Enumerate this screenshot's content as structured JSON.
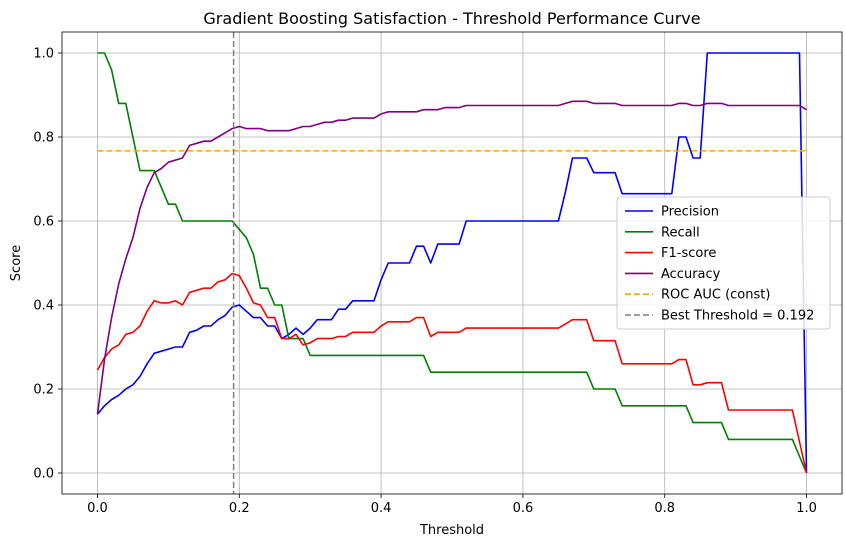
{
  "chart_data": {
    "type": "line",
    "title": "Gradient Boosting Satisfaction - Threshold Performance Curve",
    "xlabel": "Threshold",
    "ylabel": "Score",
    "xlim": [
      -0.05,
      1.05
    ],
    "ylim": [
      -0.05,
      1.05
    ],
    "xticks": [
      0.0,
      0.2,
      0.4,
      0.6,
      0.8,
      1.0
    ],
    "xtick_labels": [
      "0.0",
      "0.2",
      "0.4",
      "0.6",
      "0.8",
      "1.0"
    ],
    "yticks": [
      0.0,
      0.2,
      0.4,
      0.6,
      0.8,
      1.0
    ],
    "ytick_labels": [
      "0.0",
      "0.2",
      "0.4",
      "0.6",
      "0.8",
      "1.0"
    ],
    "grid": true,
    "legend_position": "center-right",
    "series": [
      {
        "name": "Precision",
        "color": "#0000ff",
        "points": [
          [
            0.0,
            0.14
          ],
          [
            0.01,
            0.16
          ],
          [
            0.02,
            0.175
          ],
          [
            0.03,
            0.185
          ],
          [
            0.04,
            0.2
          ],
          [
            0.05,
            0.21
          ],
          [
            0.06,
            0.23
          ],
          [
            0.07,
            0.26
          ],
          [
            0.08,
            0.285
          ],
          [
            0.09,
            0.29
          ],
          [
            0.1,
            0.295
          ],
          [
            0.11,
            0.3
          ],
          [
            0.12,
            0.3
          ],
          [
            0.13,
            0.335
          ],
          [
            0.14,
            0.34
          ],
          [
            0.15,
            0.35
          ],
          [
            0.16,
            0.35
          ],
          [
            0.17,
            0.365
          ],
          [
            0.18,
            0.375
          ],
          [
            0.19,
            0.395
          ],
          [
            0.2,
            0.4
          ],
          [
            0.21,
            0.385
          ],
          [
            0.22,
            0.37
          ],
          [
            0.23,
            0.37
          ],
          [
            0.24,
            0.35
          ],
          [
            0.25,
            0.35
          ],
          [
            0.26,
            0.32
          ],
          [
            0.27,
            0.33
          ],
          [
            0.28,
            0.345
          ],
          [
            0.29,
            0.33
          ],
          [
            0.3,
            0.345
          ],
          [
            0.31,
            0.365
          ],
          [
            0.32,
            0.365
          ],
          [
            0.33,
            0.365
          ],
          [
            0.34,
            0.39
          ],
          [
            0.35,
            0.39
          ],
          [
            0.36,
            0.41
          ],
          [
            0.39,
            0.41
          ],
          [
            0.4,
            0.46
          ],
          [
            0.41,
            0.5
          ],
          [
            0.44,
            0.5
          ],
          [
            0.45,
            0.54
          ],
          [
            0.46,
            0.54
          ],
          [
            0.47,
            0.5
          ],
          [
            0.48,
            0.545
          ],
          [
            0.51,
            0.545
          ],
          [
            0.52,
            0.6
          ],
          [
            0.65,
            0.6
          ],
          [
            0.66,
            0.67
          ],
          [
            0.67,
            0.75
          ],
          [
            0.69,
            0.75
          ],
          [
            0.7,
            0.715
          ],
          [
            0.73,
            0.715
          ],
          [
            0.74,
            0.665
          ],
          [
            0.81,
            0.665
          ],
          [
            0.82,
            0.8
          ],
          [
            0.83,
            0.8
          ],
          [
            0.84,
            0.75
          ],
          [
            0.85,
            0.75
          ],
          [
            0.86,
            1.0
          ],
          [
            0.99,
            1.0
          ],
          [
            1.0,
            0.0
          ]
        ]
      },
      {
        "name": "Recall",
        "color": "#008000",
        "points": [
          [
            0.0,
            1.0
          ],
          [
            0.01,
            1.0
          ],
          [
            0.02,
            0.96
          ],
          [
            0.03,
            0.88
          ],
          [
            0.04,
            0.88
          ],
          [
            0.05,
            0.8
          ],
          [
            0.06,
            0.72
          ],
          [
            0.08,
            0.72
          ],
          [
            0.1,
            0.64
          ],
          [
            0.11,
            0.64
          ],
          [
            0.12,
            0.6
          ],
          [
            0.19,
            0.6
          ],
          [
            0.21,
            0.56
          ],
          [
            0.22,
            0.52
          ],
          [
            0.23,
            0.44
          ],
          [
            0.24,
            0.44
          ],
          [
            0.25,
            0.4
          ],
          [
            0.26,
            0.4
          ],
          [
            0.27,
            0.32
          ],
          [
            0.29,
            0.32
          ],
          [
            0.3,
            0.28
          ],
          [
            0.46,
            0.28
          ],
          [
            0.47,
            0.24
          ],
          [
            0.69,
            0.24
          ],
          [
            0.7,
            0.2
          ],
          [
            0.73,
            0.2
          ],
          [
            0.74,
            0.16
          ],
          [
            0.83,
            0.16
          ],
          [
            0.84,
            0.12
          ],
          [
            0.88,
            0.12
          ],
          [
            0.89,
            0.08
          ],
          [
            0.98,
            0.08
          ],
          [
            1.0,
            0.0
          ]
        ]
      },
      {
        "name": "F1-score",
        "color": "#ff0000",
        "points": [
          [
            0.0,
            0.245
          ],
          [
            0.01,
            0.275
          ],
          [
            0.02,
            0.295
          ],
          [
            0.03,
            0.305
          ],
          [
            0.04,
            0.33
          ],
          [
            0.05,
            0.335
          ],
          [
            0.06,
            0.35
          ],
          [
            0.07,
            0.385
          ],
          [
            0.08,
            0.41
          ],
          [
            0.09,
            0.405
          ],
          [
            0.1,
            0.405
          ],
          [
            0.11,
            0.41
          ],
          [
            0.12,
            0.4
          ],
          [
            0.13,
            0.43
          ],
          [
            0.14,
            0.435
          ],
          [
            0.15,
            0.44
          ],
          [
            0.16,
            0.44
          ],
          [
            0.17,
            0.455
          ],
          [
            0.18,
            0.46
          ],
          [
            0.19,
            0.475
          ],
          [
            0.2,
            0.47
          ],
          [
            0.21,
            0.44
          ],
          [
            0.22,
            0.405
          ],
          [
            0.23,
            0.4
          ],
          [
            0.24,
            0.37
          ],
          [
            0.25,
            0.37
          ],
          [
            0.26,
            0.32
          ],
          [
            0.27,
            0.32
          ],
          [
            0.28,
            0.33
          ],
          [
            0.29,
            0.305
          ],
          [
            0.3,
            0.31
          ],
          [
            0.31,
            0.32
          ],
          [
            0.33,
            0.32
          ],
          [
            0.34,
            0.325
          ],
          [
            0.35,
            0.325
          ],
          [
            0.36,
            0.335
          ],
          [
            0.39,
            0.335
          ],
          [
            0.4,
            0.35
          ],
          [
            0.41,
            0.36
          ],
          [
            0.44,
            0.36
          ],
          [
            0.45,
            0.37
          ],
          [
            0.46,
            0.37
          ],
          [
            0.47,
            0.325
          ],
          [
            0.48,
            0.335
          ],
          [
            0.51,
            0.335
          ],
          [
            0.52,
            0.345
          ],
          [
            0.65,
            0.345
          ],
          [
            0.66,
            0.355
          ],
          [
            0.67,
            0.365
          ],
          [
            0.69,
            0.365
          ],
          [
            0.7,
            0.315
          ],
          [
            0.73,
            0.315
          ],
          [
            0.74,
            0.26
          ],
          [
            0.81,
            0.26
          ],
          [
            0.82,
            0.27
          ],
          [
            0.83,
            0.27
          ],
          [
            0.84,
            0.21
          ],
          [
            0.85,
            0.21
          ],
          [
            0.86,
            0.215
          ],
          [
            0.88,
            0.215
          ],
          [
            0.89,
            0.15
          ],
          [
            0.98,
            0.15
          ],
          [
            1.0,
            0.0
          ]
        ]
      },
      {
        "name": "Accuracy",
        "color": "#800080",
        "points": [
          [
            0.0,
            0.14
          ],
          [
            0.01,
            0.27
          ],
          [
            0.02,
            0.37
          ],
          [
            0.03,
            0.45
          ],
          [
            0.04,
            0.51
          ],
          [
            0.05,
            0.56
          ],
          [
            0.06,
            0.63
          ],
          [
            0.07,
            0.68
          ],
          [
            0.08,
            0.715
          ],
          [
            0.09,
            0.725
          ],
          [
            0.1,
            0.74
          ],
          [
            0.12,
            0.75
          ],
          [
            0.13,
            0.78
          ],
          [
            0.14,
            0.785
          ],
          [
            0.15,
            0.79
          ],
          [
            0.16,
            0.79
          ],
          [
            0.17,
            0.8
          ],
          [
            0.18,
            0.81
          ],
          [
            0.19,
            0.82
          ],
          [
            0.2,
            0.825
          ],
          [
            0.21,
            0.82
          ],
          [
            0.23,
            0.82
          ],
          [
            0.24,
            0.815
          ],
          [
            0.27,
            0.815
          ],
          [
            0.28,
            0.82
          ],
          [
            0.29,
            0.825
          ],
          [
            0.3,
            0.825
          ],
          [
            0.31,
            0.83
          ],
          [
            0.32,
            0.835
          ],
          [
            0.33,
            0.835
          ],
          [
            0.34,
            0.84
          ],
          [
            0.35,
            0.84
          ],
          [
            0.36,
            0.845
          ],
          [
            0.39,
            0.845
          ],
          [
            0.4,
            0.855
          ],
          [
            0.41,
            0.86
          ],
          [
            0.45,
            0.86
          ],
          [
            0.46,
            0.865
          ],
          [
            0.47,
            0.865
          ],
          [
            0.48,
            0.865
          ],
          [
            0.49,
            0.87
          ],
          [
            0.51,
            0.87
          ],
          [
            0.52,
            0.875
          ],
          [
            0.65,
            0.875
          ],
          [
            0.66,
            0.88
          ],
          [
            0.67,
            0.885
          ],
          [
            0.69,
            0.885
          ],
          [
            0.7,
            0.88
          ],
          [
            0.73,
            0.88
          ],
          [
            0.74,
            0.875
          ],
          [
            0.81,
            0.875
          ],
          [
            0.82,
            0.88
          ],
          [
            0.83,
            0.88
          ],
          [
            0.84,
            0.875
          ],
          [
            0.85,
            0.875
          ],
          [
            0.86,
            0.88
          ],
          [
            0.88,
            0.88
          ],
          [
            0.89,
            0.875
          ],
          [
            0.98,
            0.875
          ],
          [
            0.99,
            0.875
          ],
          [
            1.0,
            0.865
          ]
        ]
      }
    ],
    "reference_lines": [
      {
        "name": "ROC AUC (const)",
        "orientation": "horizontal",
        "value": 0.767,
        "color": "#ffa500",
        "style": "dashed",
        "x_range": [
          0.0,
          1.0
        ]
      },
      {
        "name": "Best Threshold = 0.192",
        "orientation": "vertical",
        "value": 0.192,
        "color": "#808080",
        "style": "dashed"
      }
    ],
    "legend": [
      "Precision",
      "Recall",
      "F1-score",
      "Accuracy",
      "ROC AUC (const)",
      "Best Threshold = 0.192"
    ]
  }
}
